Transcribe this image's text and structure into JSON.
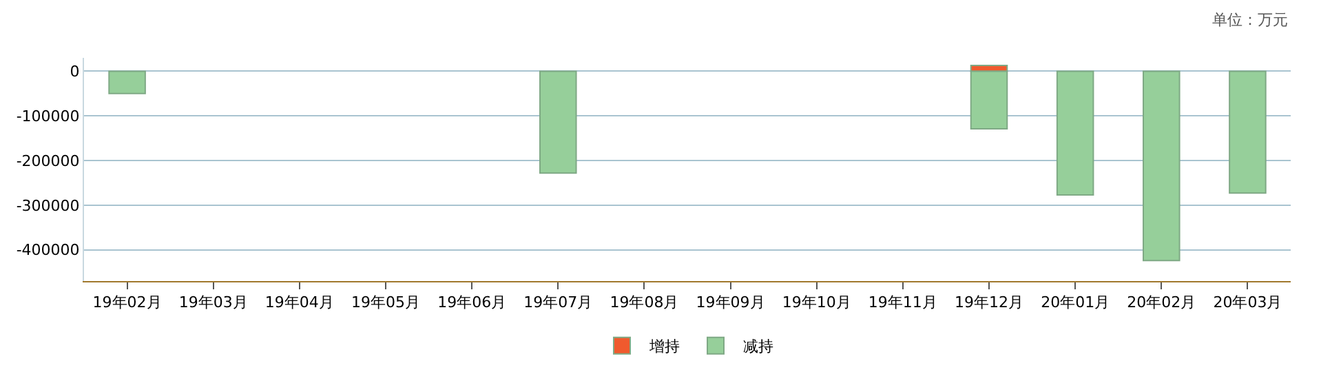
{
  "chart_data": {
    "type": "bar",
    "stacked": true,
    "categories": [
      "19年02月",
      "19年03月",
      "19年04月",
      "19年05月",
      "19年06月",
      "19年07月",
      "19年08月",
      "19年09月",
      "19年10月",
      "19年11月",
      "19年12月",
      "20年01月",
      "20年02月",
      "20年03月"
    ],
    "series": [
      {
        "name": "增持",
        "color": "#f05a2e",
        "values": [
          null,
          null,
          null,
          null,
          null,
          null,
          null,
          null,
          null,
          null,
          13000,
          null,
          null,
          null
        ]
      },
      {
        "name": "减持",
        "color": "#96cf9a",
        "values": [
          -50000,
          null,
          null,
          null,
          null,
          -228000,
          null,
          null,
          null,
          null,
          -129000,
          -277000,
          -424000,
          -273000
        ]
      }
    ],
    "ylim": [
      -470000,
      30000
    ],
    "yticks": [
      -400000,
      -300000,
      -200000,
      -100000,
      0
    ],
    "grid": "y",
    "legend": "bottom",
    "annotations": [
      "单位：万元"
    ]
  }
}
